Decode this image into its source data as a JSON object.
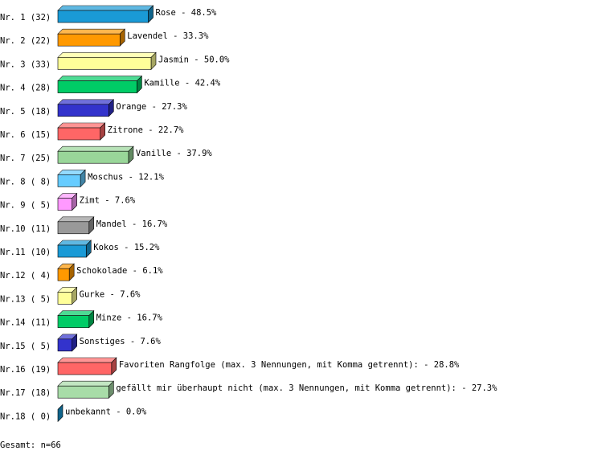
{
  "chart_data": {
    "type": "bar3d",
    "categories": [
      "Nr. 1 (32)",
      "Nr. 2 (22)",
      "Nr. 3 (33)",
      "Nr. 4 (28)",
      "Nr. 5 (18)",
      "Nr. 6 (15)",
      "Nr. 7 (25)",
      "Nr. 8 ( 8)",
      "Nr. 9 ( 5)",
      "Nr.10 (11)",
      "Nr.11 (10)",
      "Nr.12 ( 4)",
      "Nr.13 ( 5)",
      "Nr.14 (11)",
      "Nr.15 ( 5)",
      "Nr.16 (19)",
      "Nr.17 (18)",
      "Nr.18 ( 0)"
    ],
    "values": [
      48.5,
      33.3,
      50.0,
      42.4,
      27.3,
      22.7,
      37.9,
      12.1,
      7.6,
      16.7,
      15.2,
      6.1,
      7.6,
      16.7,
      7.6,
      28.8,
      27.3,
      0.0
    ],
    "value_labels": [
      "Rose -  48.5%",
      "Lavendel -  33.3%",
      "Jasmin -  50.0%",
      "Kamille -  42.4%",
      "Orange -  27.3%",
      "Zitrone -  22.7%",
      "Vanille -  37.9%",
      "Moschus -  12.1%",
      "Zimt -   7.6%",
      "Mandel -  16.7%",
      "Kokos -  15.2%",
      "Schokolade -   6.1%",
      "Gurke -   7.6%",
      "Minze -  16.7%",
      "Sonstiges -   7.6%",
      "Favoriten Rangfolge (max. 3 Nennungen, mit Komma getrennt): -  28.8%",
      "gefällt mir überhaupt nicht (max. 3 Nennungen, mit Komma getrennt): -  27.3%",
      "unbekannt -   0.0%"
    ],
    "colors": [
      "#1a9ad6",
      "#ff9900",
      "#ffff99",
      "#00cc66",
      "#3333cc",
      "#ff6666",
      "#99d699",
      "#66ccff",
      "#ff99ff",
      "#999999",
      "#1a9ad6",
      "#ff9900",
      "#ffff99",
      "#00cc66",
      "#3333cc",
      "#ff6666",
      "#a8dca8",
      "#1a9ad6"
    ],
    "footer": "Gesamt: n=66"
  }
}
